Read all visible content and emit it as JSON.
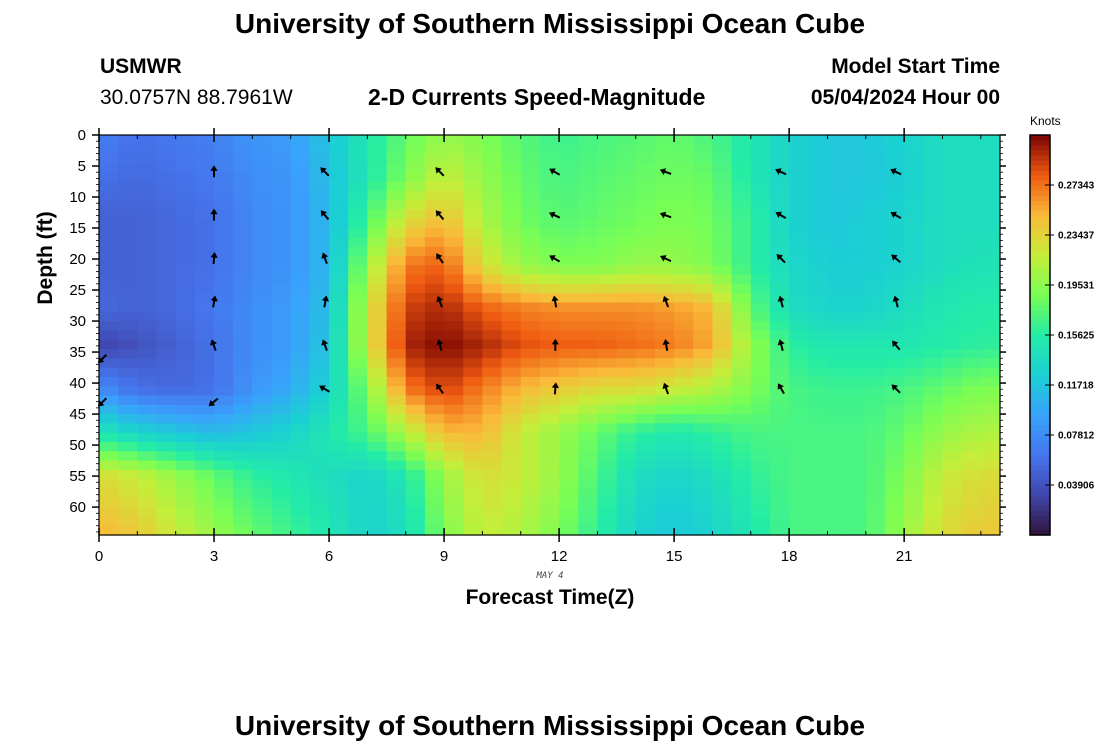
{
  "page": {
    "title_top": "University of Southern Mississippi Ocean Cube",
    "title_bottom": "University of Southern Mississippi Ocean Cube",
    "station": "USMWR",
    "coords": "30.0757N  88.7961W",
    "subtitle": "2-D Currents Speed-Magnitude",
    "model_label": "Model Start Time",
    "model_time": "05/04/2024 Hour 00",
    "date_label": "MAY 4"
  },
  "chart_data": {
    "type": "heatmap",
    "title": "2-D Currents Speed-Magnitude",
    "xlabel": "Forecast Time(Z)",
    "ylabel": "Depth (ft)",
    "xlim": [
      0,
      23.5
    ],
    "ylim": [
      0,
      64.5
    ],
    "x_ticks": [
      "0",
      "3",
      "6",
      "9",
      "12",
      "15",
      "18",
      "21"
    ],
    "y_ticks": [
      "0",
      "5",
      "10",
      "15",
      "20",
      "25",
      "30",
      "35",
      "40",
      "45",
      "50",
      "55",
      "60"
    ],
    "colorbar": {
      "label": "Knots",
      "min": 0.0,
      "max": 0.3125,
      "ticks": [
        "0.03906",
        "0.07812",
        "0.11718",
        "0.15625",
        "0.19531",
        "0.23437",
        "0.27343"
      ]
    },
    "grid_depths": [
      0,
      7,
      14,
      21,
      28,
      34,
      41,
      48,
      55,
      64
    ],
    "grid_times": [
      0,
      1,
      2,
      3,
      4,
      5,
      6,
      7,
      8,
      9,
      10,
      11,
      12,
      13,
      14,
      15,
      16,
      17,
      18,
      19,
      20,
      21,
      22,
      23
    ],
    "speed_knots": [
      [
        0.07,
        0.06,
        0.065,
        0.07,
        0.085,
        0.09,
        0.12,
        0.15,
        0.18,
        0.2,
        0.19,
        0.175,
        0.165,
        0.17,
        0.175,
        0.18,
        0.17,
        0.15,
        0.13,
        0.12,
        0.12,
        0.13,
        0.14,
        0.14
      ],
      [
        0.06,
        0.055,
        0.06,
        0.065,
        0.08,
        0.085,
        0.115,
        0.15,
        0.19,
        0.22,
        0.2,
        0.18,
        0.17,
        0.175,
        0.18,
        0.185,
        0.18,
        0.15,
        0.13,
        0.12,
        0.12,
        0.125,
        0.14,
        0.14
      ],
      [
        0.05,
        0.05,
        0.055,
        0.06,
        0.075,
        0.085,
        0.11,
        0.17,
        0.23,
        0.25,
        0.21,
        0.185,
        0.175,
        0.18,
        0.185,
        0.19,
        0.185,
        0.16,
        0.13,
        0.12,
        0.125,
        0.13,
        0.14,
        0.14
      ],
      [
        0.05,
        0.05,
        0.055,
        0.06,
        0.075,
        0.085,
        0.11,
        0.2,
        0.27,
        0.28,
        0.23,
        0.2,
        0.19,
        0.19,
        0.2,
        0.2,
        0.19,
        0.16,
        0.135,
        0.125,
        0.125,
        0.13,
        0.14,
        0.145
      ],
      [
        0.055,
        0.05,
        0.055,
        0.065,
        0.08,
        0.09,
        0.115,
        0.22,
        0.29,
        0.3,
        0.28,
        0.27,
        0.265,
        0.265,
        0.265,
        0.26,
        0.25,
        0.18,
        0.14,
        0.13,
        0.13,
        0.14,
        0.15,
        0.155
      ],
      [
        0.03,
        0.04,
        0.05,
        0.06,
        0.08,
        0.09,
        0.12,
        0.22,
        0.3,
        0.31,
        0.3,
        0.285,
        0.28,
        0.28,
        0.275,
        0.27,
        0.255,
        0.2,
        0.16,
        0.15,
        0.15,
        0.15,
        0.155,
        0.16
      ],
      [
        0.08,
        0.06,
        0.055,
        0.06,
        0.085,
        0.1,
        0.13,
        0.19,
        0.27,
        0.29,
        0.27,
        0.25,
        0.24,
        0.23,
        0.23,
        0.22,
        0.21,
        0.19,
        0.17,
        0.165,
        0.165,
        0.17,
        0.18,
        0.19
      ],
      [
        0.15,
        0.13,
        0.12,
        0.11,
        0.12,
        0.13,
        0.15,
        0.17,
        0.21,
        0.25,
        0.25,
        0.22,
        0.2,
        0.18,
        0.16,
        0.15,
        0.16,
        0.17,
        0.17,
        0.17,
        0.17,
        0.18,
        0.2,
        0.21
      ],
      [
        0.23,
        0.22,
        0.2,
        0.18,
        0.16,
        0.15,
        0.14,
        0.13,
        0.15,
        0.2,
        0.23,
        0.22,
        0.2,
        0.17,
        0.14,
        0.13,
        0.14,
        0.16,
        0.17,
        0.17,
        0.17,
        0.19,
        0.22,
        0.23
      ],
      [
        0.25,
        0.24,
        0.22,
        0.2,
        0.18,
        0.165,
        0.15,
        0.13,
        0.14,
        0.19,
        0.22,
        0.21,
        0.19,
        0.16,
        0.13,
        0.12,
        0.13,
        0.15,
        0.17,
        0.17,
        0.17,
        0.2,
        0.23,
        0.24
      ]
    ],
    "arrows": [
      {
        "t": 3,
        "depths": [
          6,
          13,
          20,
          27,
          34,
          43
        ],
        "angles_deg": [
          0,
          0,
          5,
          10,
          -20,
          -130
        ]
      },
      {
        "t": 5.9,
        "depths": [
          6,
          13,
          20,
          27,
          34,
          41
        ],
        "angles_deg": [
          -45,
          -40,
          -20,
          10,
          -20,
          -60
        ]
      },
      {
        "t": 8.9,
        "depths": [
          6,
          13,
          20,
          27,
          34,
          41
        ],
        "angles_deg": [
          -45,
          -40,
          -35,
          -20,
          -15,
          -35
        ]
      },
      {
        "t": 11.9,
        "depths": [
          6,
          13,
          20,
          27,
          34,
          41
        ],
        "angles_deg": [
          -60,
          -65,
          -60,
          -10,
          0,
          5
        ]
      },
      {
        "t": 14.8,
        "depths": [
          6,
          13,
          20,
          27,
          34,
          41
        ],
        "angles_deg": [
          -70,
          -70,
          -65,
          -20,
          -10,
          -20
        ]
      },
      {
        "t": 17.8,
        "depths": [
          6,
          13,
          20,
          27,
          34,
          41
        ],
        "angles_deg": [
          -65,
          -60,
          -45,
          -15,
          -15,
          -30
        ]
      },
      {
        "t": 20.8,
        "depths": [
          6,
          13,
          20,
          27,
          34,
          41
        ],
        "angles_deg": [
          -65,
          -60,
          -50,
          -15,
          -40,
          -45
        ]
      },
      {
        "t": 0.1,
        "depths": [
          36,
          43
        ],
        "angles_deg": [
          -135,
          -135
        ]
      }
    ]
  }
}
